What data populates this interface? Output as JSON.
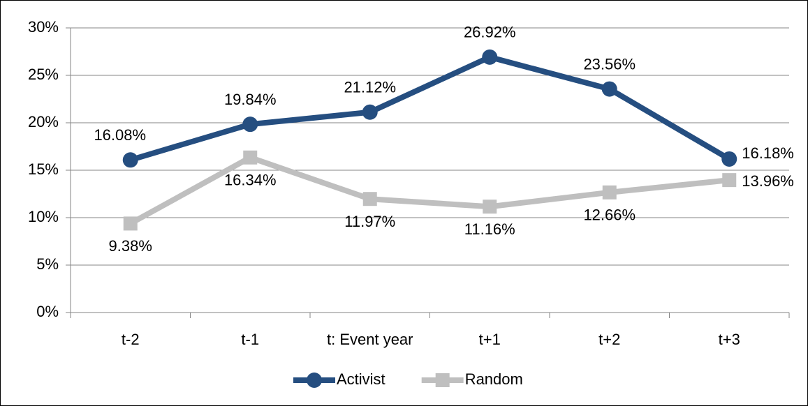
{
  "chart_data": {
    "type": "line",
    "categories": [
      "t-2",
      "t-1",
      "t: Event year",
      "t+1",
      "t+2",
      "t+3"
    ],
    "series": [
      {
        "name": "Activist",
        "color": "#254e80",
        "marker": "circle",
        "values": [
          16.08,
          19.84,
          21.12,
          26.92,
          23.56,
          16.18
        ],
        "value_labels": [
          "16.08%",
          "19.84%",
          "21.12%",
          "26.92%",
          "23.56%",
          "16.18%"
        ]
      },
      {
        "name": "Random",
        "color": "#bfbfbf",
        "marker": "square",
        "values": [
          9.38,
          16.34,
          11.97,
          11.16,
          12.66,
          13.96
        ],
        "value_labels": [
          "9.38%",
          "16.34%",
          "11.97%",
          "11.16%",
          "12.66%",
          "13.96%"
        ]
      }
    ],
    "ylim": [
      0,
      30
    ],
    "yticks": [
      {
        "value": 0,
        "label": "0%"
      },
      {
        "value": 5,
        "label": "5%"
      },
      {
        "value": 10,
        "label": "10%"
      },
      {
        "value": 15,
        "label": "15%"
      },
      {
        "value": 20,
        "label": "20%"
      },
      {
        "value": 25,
        "label": "25%"
      },
      {
        "value": 30,
        "label": "30%"
      }
    ],
    "grid": true,
    "legend": "bottom"
  }
}
